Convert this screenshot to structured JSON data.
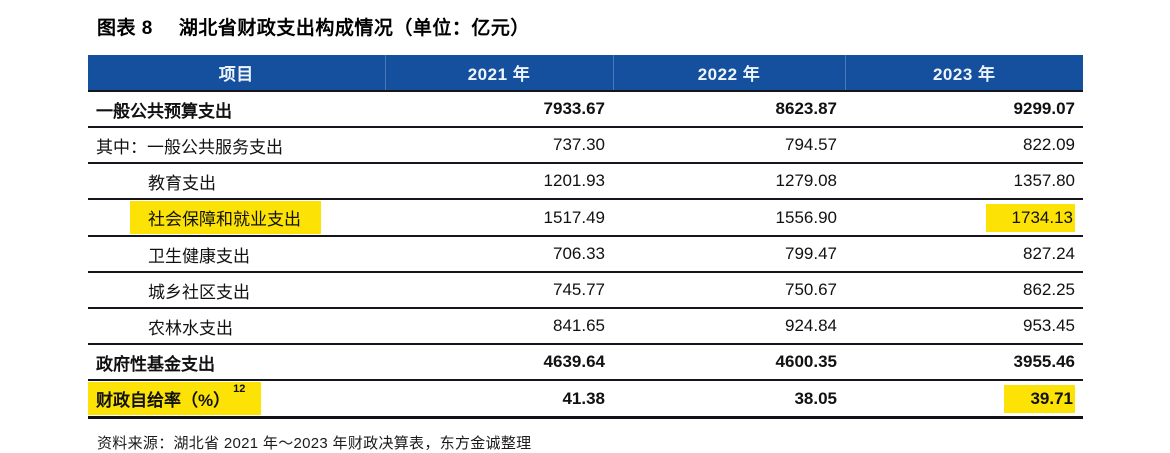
{
  "page": {
    "title_prefix": "图表 8",
    "title": "湖北省财政支出构成情况（单位：亿元）",
    "source": "资料来源：湖北省 2021 年～2023 年财政决算表，东方金诚整理"
  },
  "table": {
    "columns": [
      "项目",
      "2021 年",
      "2022 年",
      "2023 年"
    ],
    "rows": [
      {
        "label": "一般公共预算支出",
        "values": [
          "7933.67",
          "8623.87",
          "9299.07"
        ]
      },
      {
        "label": "其中：一般公共服务支出",
        "values": [
          "737.30",
          "794.57",
          "822.09"
        ]
      },
      {
        "label": "教育支出",
        "values": [
          "1201.93",
          "1279.08",
          "1357.80"
        ]
      },
      {
        "label": "社会保障和就业支出",
        "values": [
          "1517.49",
          "1556.90",
          "1734.13"
        ]
      },
      {
        "label": "卫生健康支出",
        "values": [
          "706.33",
          "799.47",
          "827.24"
        ]
      },
      {
        "label": "城乡社区支出",
        "values": [
          "745.77",
          "750.67",
          "862.25"
        ]
      },
      {
        "label": "农林水支出",
        "values": [
          "841.65",
          "924.84",
          "953.45"
        ]
      },
      {
        "label": "政府性基金支出",
        "values": [
          "4639.64",
          "4600.35",
          "3955.46"
        ]
      },
      {
        "label": "财政自给率（%）",
        "sup": "12",
        "values": [
          "41.38",
          "38.05",
          "39.71"
        ]
      }
    ]
  },
  "colors": {
    "header_bg": "#15509E",
    "header_text": "#EFF5FC",
    "highlight_yellow": "#FCE305",
    "rule_dark": "#15151E"
  }
}
